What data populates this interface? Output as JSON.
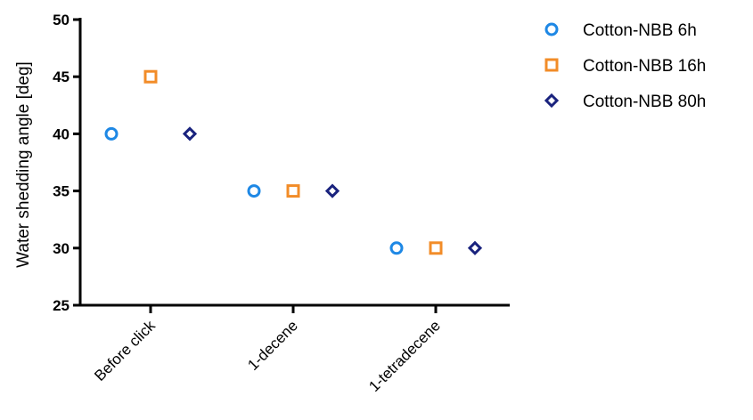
{
  "chart_data": {
    "type": "scatter",
    "title": "",
    "xlabel": "",
    "ylabel": "Water shedding angle [deg]",
    "ylim": [
      25,
      50
    ],
    "yticks": [
      25,
      30,
      35,
      40,
      45,
      50
    ],
    "categories": [
      "Before click",
      "1-decene",
      "1-tetradecene"
    ],
    "grid": false,
    "legend_position": "top-right",
    "series": [
      {
        "name": "Cotton-NBB 6h",
        "marker": "circle",
        "color": "#1e88e5",
        "values": [
          40,
          35,
          30
        ]
      },
      {
        "name": "Cotton-NBB 16h",
        "marker": "square",
        "color": "#f28c28",
        "values": [
          45,
          35,
          30
        ]
      },
      {
        "name": "Cotton-NBB 80h",
        "marker": "diamond",
        "color": "#1a237e",
        "values": [
          40,
          35,
          30
        ]
      }
    ]
  }
}
